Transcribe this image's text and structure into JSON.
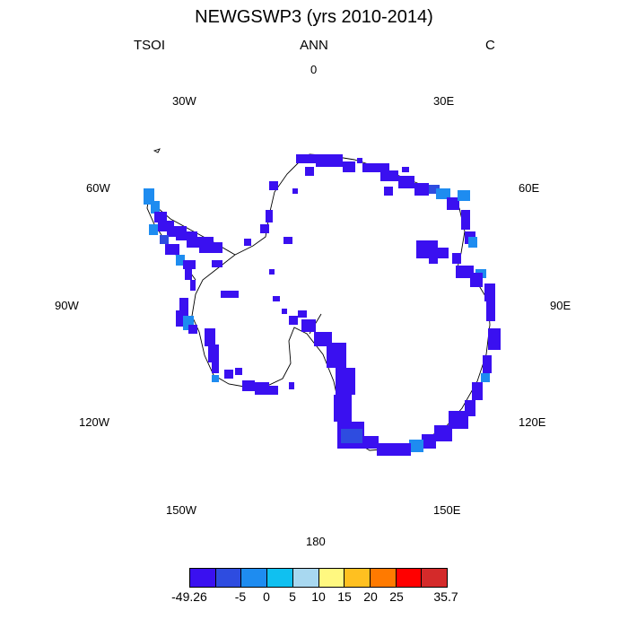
{
  "title": "NEWGSWP3 (yrs 2010-2014)",
  "left_label": "TSOI",
  "center_label": "ANN",
  "right_label": "C",
  "longitude_labels": [
    "0",
    "30E",
    "60E",
    "90E",
    "120E",
    "150E",
    "180",
    "150W",
    "120W",
    "90W",
    "60W",
    "30W"
  ],
  "colorbar": {
    "colors": [
      "#3a10f0",
      "#2e4ce0",
      "#1e8cf0",
      "#10c0f0",
      "#a8d8f0",
      "#fff880",
      "#ffc020",
      "#ff7a00",
      "#ff0000",
      "#d42a2a"
    ],
    "labels": [
      "-49.26",
      "-5",
      "0",
      "5",
      "10",
      "15",
      "20",
      "25",
      "35.7"
    ]
  },
  "colors": {
    "dominant": "#3a10f0",
    "secondary": "#2e4ce0",
    "light": "#1e8cf0"
  }
}
